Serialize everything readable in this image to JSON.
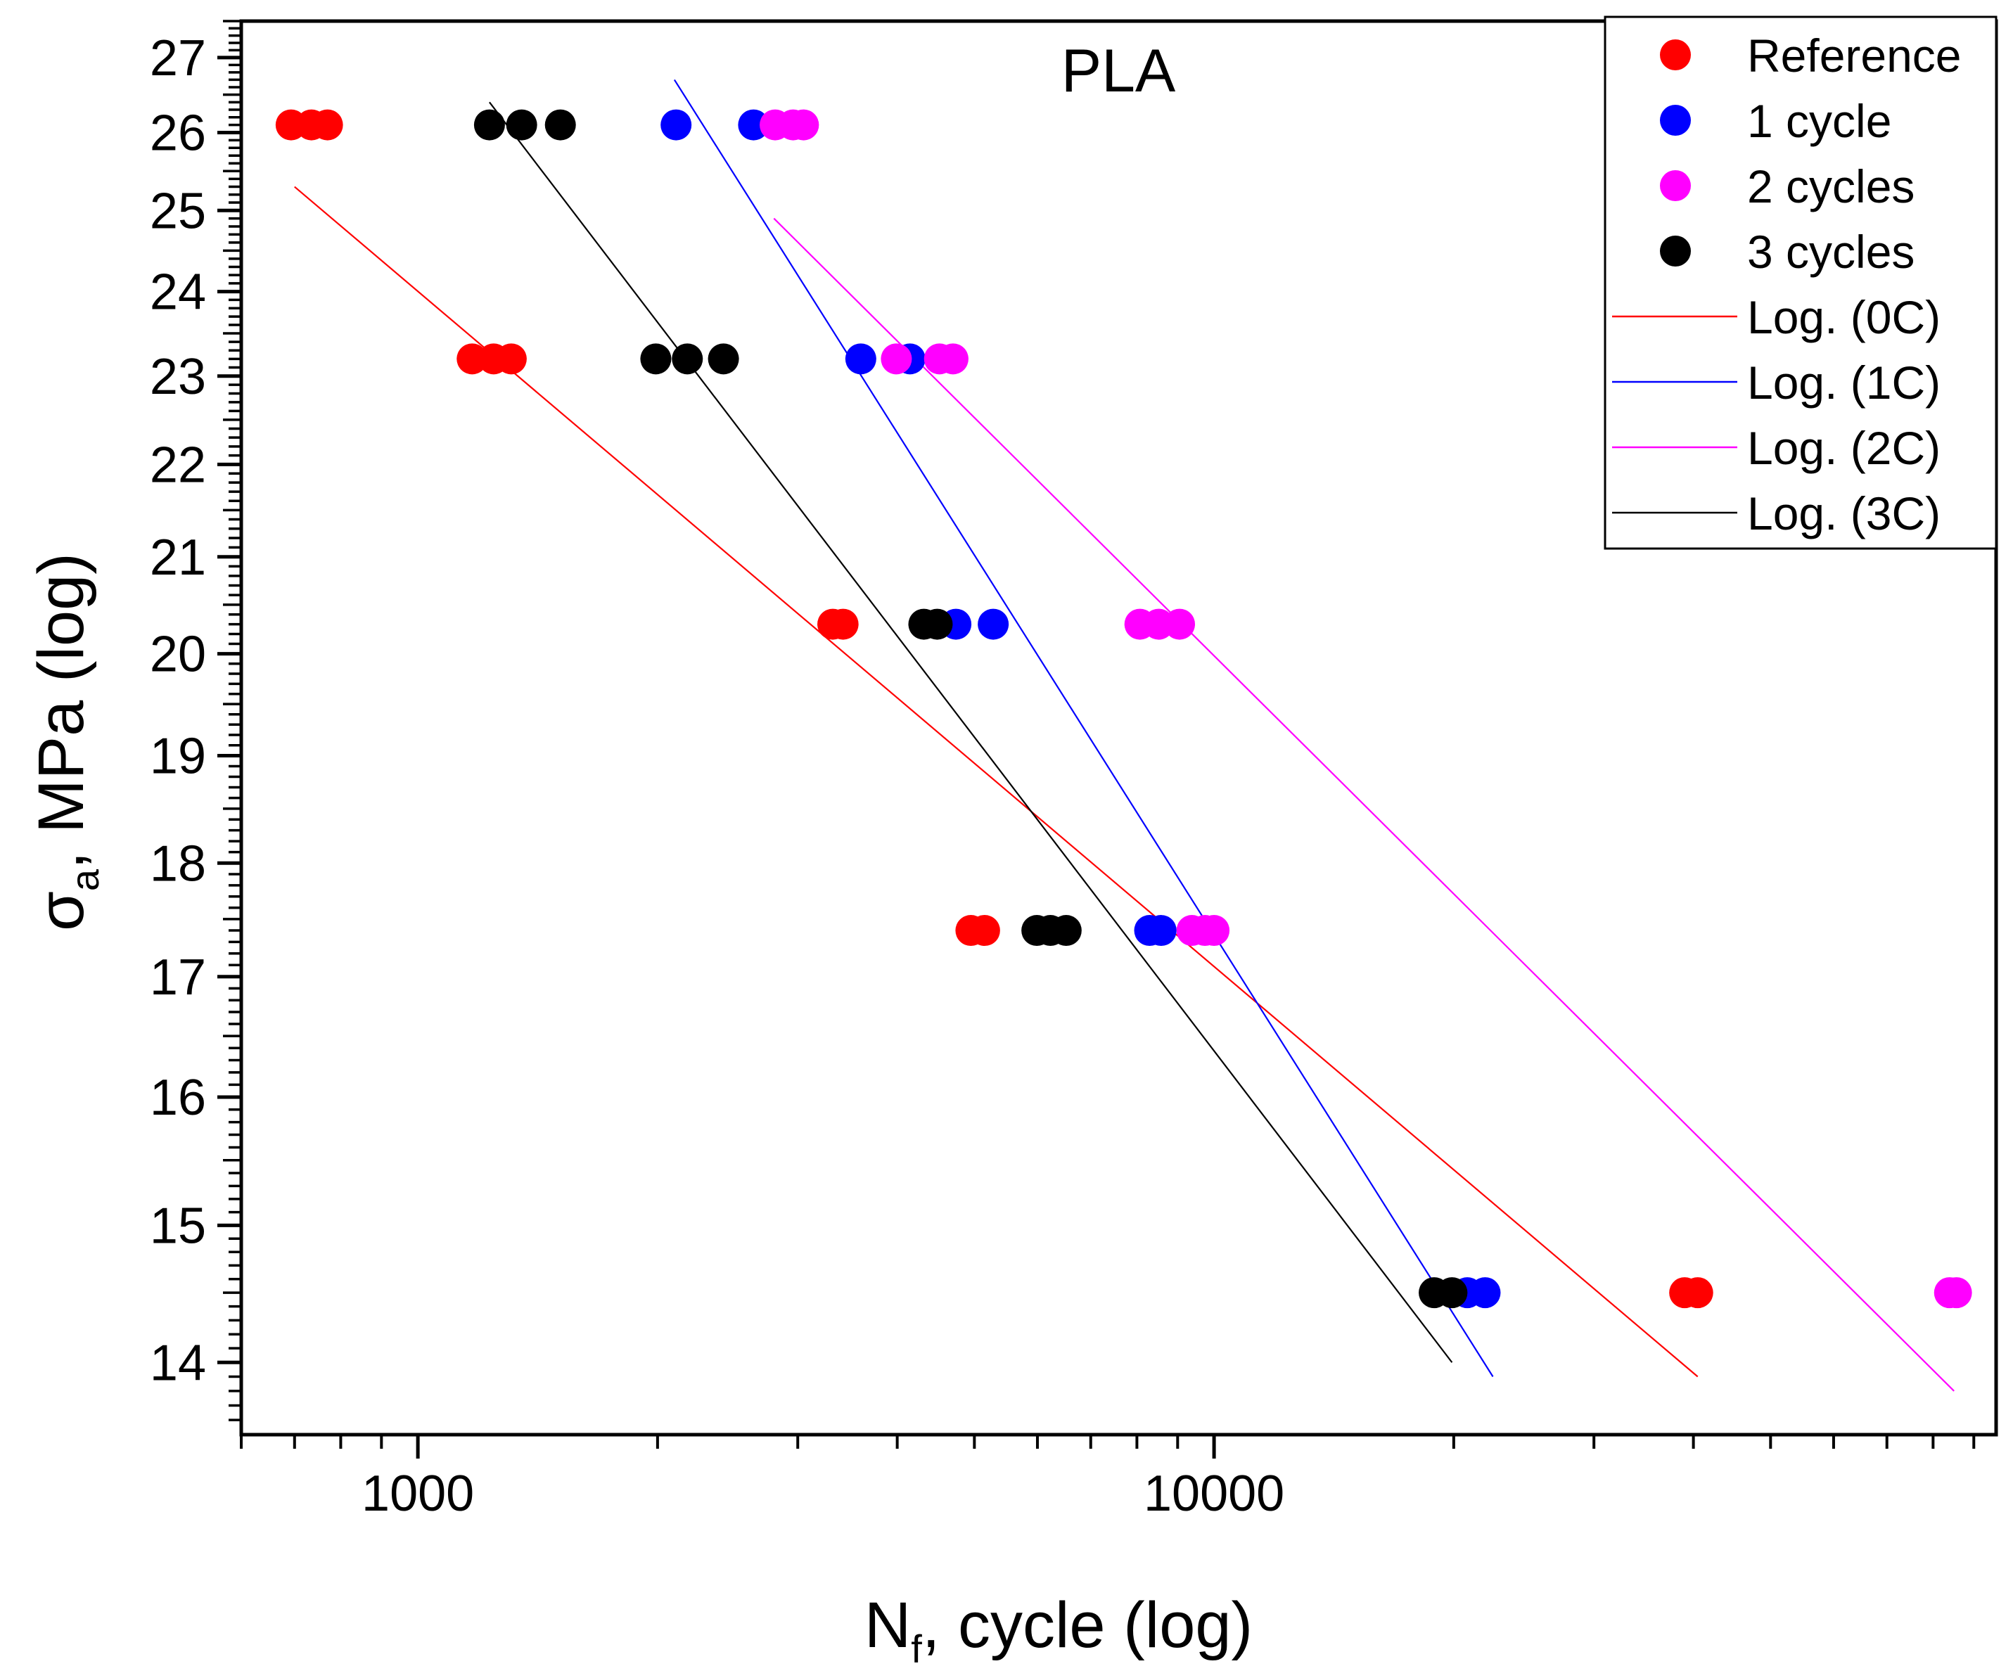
{
  "chart_data": {
    "type": "scatter",
    "title": "PLA",
    "xlabel": {
      "main": "N",
      "sub": "f",
      "rest": ", cycle (log)"
    },
    "ylabel": {
      "main": "σ",
      "sub": "a",
      "rest": ", MPa (log)"
    },
    "xscale": "log",
    "yscale": "log",
    "xlim": [
      600,
      96000
    ],
    "ylim": [
      13.5,
      27.5
    ],
    "xticks": [
      {
        "value": 1000,
        "label": "1000"
      },
      {
        "value": 10000,
        "label": "10000"
      }
    ],
    "yticks": [
      {
        "value": 14,
        "label": "14"
      },
      {
        "value": 15,
        "label": "15"
      },
      {
        "value": 16,
        "label": "16"
      },
      {
        "value": 17,
        "label": "17"
      },
      {
        "value": 18,
        "label": "18"
      },
      {
        "value": 19,
        "label": "19"
      },
      {
        "value": 20,
        "label": "20"
      },
      {
        "value": 21,
        "label": "21"
      },
      {
        "value": 22,
        "label": "22"
      },
      {
        "value": 23,
        "label": "23"
      },
      {
        "value": 24,
        "label": "24"
      },
      {
        "value": 25,
        "label": "25"
      },
      {
        "value": 26,
        "label": "26"
      },
      {
        "value": 27,
        "label": "27"
      }
    ],
    "legend_position": "top-right",
    "series": [
      {
        "name": "Reference",
        "color": "#ff0000",
        "points": [
          [
            693,
            26.1
          ],
          [
            735,
            26.1
          ],
          [
            770,
            26.1
          ],
          [
            1170,
            23.2
          ],
          [
            1245,
            23.2
          ],
          [
            1310,
            23.2
          ],
          [
            3320,
            20.3
          ],
          [
            3420,
            20.3
          ],
          [
            4950,
            17.4
          ],
          [
            5150,
            17.4
          ],
          [
            39000,
            14.5
          ],
          [
            40500,
            14.5
          ]
        ]
      },
      {
        "name": "1 cycle",
        "color": "#0000ff",
        "points": [
          [
            2110,
            26.1
          ],
          [
            2640,
            26.1
          ],
          [
            3600,
            23.2
          ],
          [
            4150,
            23.2
          ],
          [
            4740,
            20.3
          ],
          [
            5280,
            20.3
          ],
          [
            8300,
            17.4
          ],
          [
            8580,
            17.4
          ],
          [
            20800,
            14.5
          ],
          [
            21900,
            14.5
          ]
        ]
      },
      {
        "name": "2 cycles",
        "color": "#ff00ff",
        "points": [
          [
            2810,
            26.1
          ],
          [
            2960,
            26.1
          ],
          [
            3050,
            26.1
          ],
          [
            3990,
            23.2
          ],
          [
            4520,
            23.2
          ],
          [
            4700,
            23.2
          ],
          [
            8070,
            20.3
          ],
          [
            8520,
            20.3
          ],
          [
            9050,
            20.3
          ],
          [
            9380,
            17.4
          ],
          [
            9740,
            17.4
          ],
          [
            10000,
            17.4
          ],
          [
            83900,
            14.5
          ],
          [
            85600,
            14.5
          ]
        ]
      },
      {
        "name": "3 cycles",
        "color": "#000000",
        "points": [
          [
            1230,
            26.1
          ],
          [
            1350,
            26.1
          ],
          [
            1510,
            26.1
          ],
          [
            1990,
            23.2
          ],
          [
            2180,
            23.2
          ],
          [
            2420,
            23.2
          ],
          [
            4320,
            20.3
          ],
          [
            4490,
            20.3
          ],
          [
            5990,
            17.4
          ],
          [
            6230,
            17.4
          ],
          [
            6520,
            17.4
          ],
          [
            18900,
            14.5
          ],
          [
            19900,
            14.5
          ]
        ]
      },
      {
        "name": "Log. (0C)",
        "color": "#ff0000",
        "trendline": true,
        "line": [
          [
            700,
            25.3
          ],
          [
            40500,
            13.9
          ]
        ]
      },
      {
        "name": "Log. (1C)",
        "color": "#0000ff",
        "trendline": true,
        "line": [
          [
            2100,
            26.7
          ],
          [
            22400,
            13.9
          ]
        ]
      },
      {
        "name": "Log. (2C)",
        "color": "#ff00ff",
        "trendline": true,
        "line": [
          [
            2800,
            24.9
          ],
          [
            85000,
            13.8
          ]
        ]
      },
      {
        "name": "Log. (3C)",
        "color": "#000000",
        "trendline": true,
        "line": [
          [
            1230,
            26.4
          ],
          [
            19900,
            14.0
          ]
        ]
      }
    ]
  }
}
